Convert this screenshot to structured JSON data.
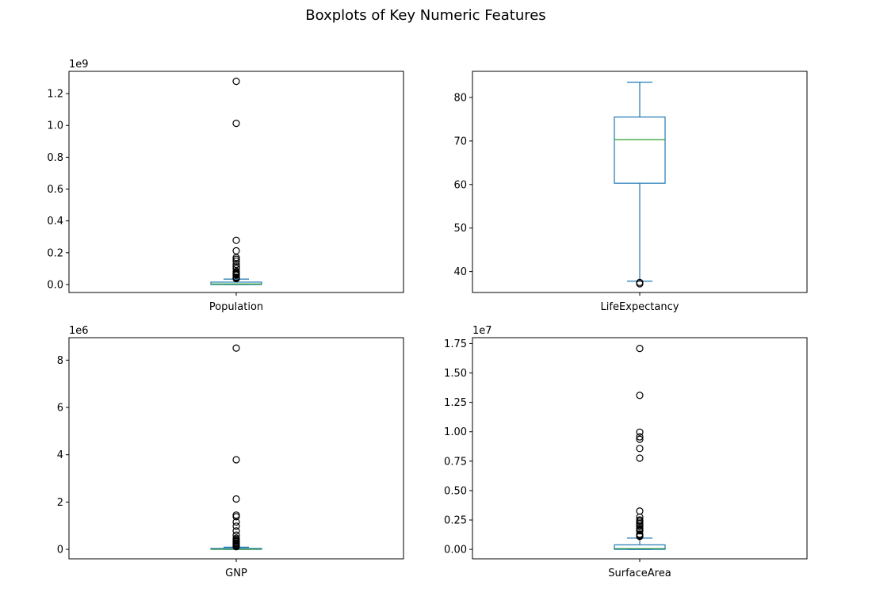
{
  "figure": {
    "title": "Boxplots of Key Numeric Features"
  },
  "colors": {
    "box": "#1f77b4",
    "median": "#2ca02c",
    "flier": "#000000",
    "axes": "#000000",
    "background": "#ffffff"
  },
  "chart_data": [
    {
      "type": "boxplot",
      "category": "Population",
      "offset_label": "1e9",
      "ylim": [
        -0.05,
        1.34
      ],
      "yticks": [
        0.0,
        0.2,
        0.4,
        0.6,
        0.8,
        1.0,
        1.2
      ],
      "ytick_labels": [
        "0.0",
        "0.2",
        "0.4",
        "0.6",
        "0.8",
        "1.0",
        "1.2"
      ],
      "grid": false,
      "box": {
        "whisker_low": 0.0,
        "q1": 0.0003,
        "median": 0.0038,
        "q3": 0.0152,
        "whisker_high": 0.034
      },
      "outliers": [
        1.277,
        1.013,
        0.278,
        0.212,
        0.17,
        0.159,
        0.147,
        0.126,
        0.111,
        0.1,
        0.082,
        0.079,
        0.071,
        0.067,
        0.062,
        0.061,
        0.059,
        0.046,
        0.045,
        0.042,
        0.039,
        0.037
      ]
    },
    {
      "type": "boxplot",
      "category": "LifeExpectancy",
      "offset_label": "",
      "ylim": [
        35.2,
        86.0
      ],
      "yticks": [
        40,
        50,
        60,
        70,
        80
      ],
      "ytick_labels": [
        "40",
        "50",
        "60",
        "70",
        "80"
      ],
      "grid": false,
      "box": {
        "whisker_low": 37.8,
        "q1": 60.3,
        "median": 70.3,
        "q3": 75.5,
        "whisker_high": 83.5
      },
      "outliers": [
        37.2,
        37.5
      ]
    },
    {
      "type": "boxplot",
      "category": "GNP",
      "offset_label": "1e6",
      "ylim": [
        -0.4,
        8.95
      ],
      "yticks": [
        0,
        2,
        4,
        6,
        8
      ],
      "ytick_labels": [
        "0",
        "2",
        "4",
        "6",
        "8"
      ],
      "grid": false,
      "box": {
        "whisker_low": 0.0,
        "q1": 0.0006,
        "median": 0.005,
        "q3": 0.038,
        "whisker_high": 0.09
      },
      "outliers": [
        8.51,
        3.79,
        2.13,
        1.45,
        1.38,
        1.16,
        0.98,
        0.78,
        0.6,
        0.47,
        0.42,
        0.37,
        0.33,
        0.28,
        0.25,
        0.21,
        0.19,
        0.17,
        0.13,
        0.11
      ]
    },
    {
      "type": "boxplot",
      "category": "SurfaceArea",
      "offset_label": "1e7",
      "ylim": [
        -0.08,
        1.8
      ],
      "yticks": [
        0.0,
        0.25,
        0.5,
        0.75,
        1.0,
        1.25,
        1.5,
        1.75
      ],
      "ytick_labels": [
        "0.00",
        "0.25",
        "0.50",
        "0.75",
        "1.00",
        "1.25",
        "1.50",
        "1.75"
      ],
      "grid": false,
      "box": {
        "whisker_low": 0.0,
        "q1": 0.0003,
        "median": 0.0071,
        "q3": 0.039,
        "whisker_high": 0.096
      },
      "outliers": [
        1.708,
        1.31,
        0.997,
        0.957,
        0.936,
        0.858,
        0.776,
        0.326,
        0.275,
        0.25,
        0.24,
        0.224,
        0.217,
        0.201,
        0.196,
        0.178,
        0.165,
        0.158,
        0.13,
        0.124,
        0.118,
        0.113,
        0.11
      ]
    }
  ]
}
